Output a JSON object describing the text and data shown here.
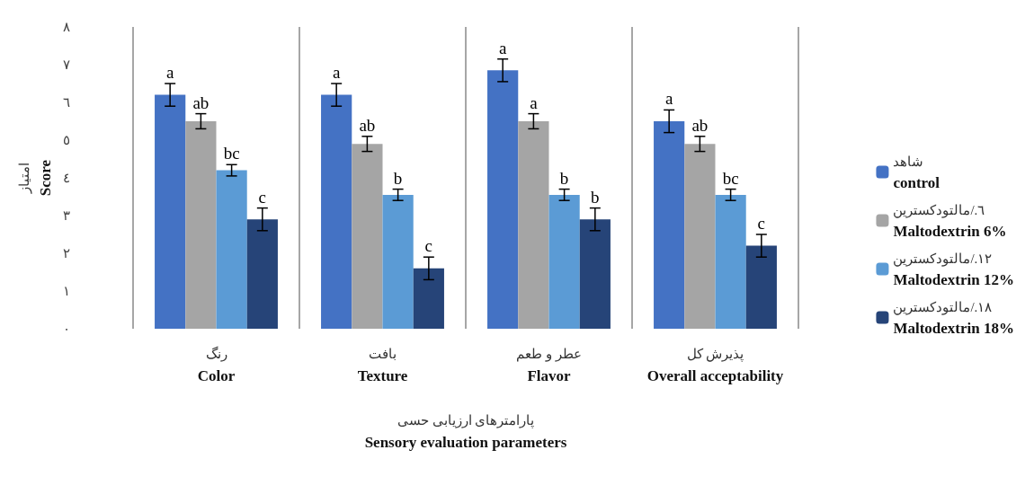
{
  "chart_data": {
    "type": "bar",
    "categories": [
      "رنگ\nColor",
      "بافت\nTexture",
      "عطر و طعم\nFlavor",
      "پذیرش کل\nOverall acceptability"
    ],
    "series": [
      {
        "name": "شاهد\ncontrol",
        "color": "#4472c4",
        "values": [
          6.2,
          6.2,
          6.85,
          5.5
        ],
        "errors": [
          0.3,
          0.3,
          0.3,
          0.3
        ],
        "value_labels": [
          "a",
          "a",
          "a",
          "a"
        ]
      },
      {
        "name": "٦./مالتودکسترین\nMaltodextrin 6%",
        "color": "#a5a5a5",
        "values": [
          5.5,
          4.9,
          5.5,
          4.9
        ],
        "errors": [
          0.2,
          0.2,
          0.2,
          0.2
        ],
        "value_labels": [
          "ab",
          "ab",
          "a",
          "ab"
        ]
      },
      {
        "name": "١٢./مالتودکسترین\nMaltodextrin 12%",
        "color": "#5b9bd5",
        "values": [
          4.2,
          3.55,
          3.55,
          3.55
        ],
        "errors": [
          0.15,
          0.15,
          0.15,
          0.15
        ],
        "value_labels": [
          "bc",
          "b",
          "b",
          "bc"
        ]
      },
      {
        "name": "١٨./مالتودکسترین\nMaltodextrin 18%",
        "color": "#264478",
        "values": [
          2.9,
          1.6,
          2.9,
          2.2
        ],
        "errors": [
          0.3,
          0.3,
          0.3,
          0.3
        ],
        "value_labels": [
          "c",
          "c",
          "b",
          "c"
        ]
      }
    ],
    "ylim": [
      0,
      8
    ],
    "yticks": [
      {
        "value": 0,
        "label": "٠"
      },
      {
        "value": 1,
        "label": "١"
      },
      {
        "value": 2,
        "label": "٢"
      },
      {
        "value": 3,
        "label": "٣"
      },
      {
        "value": 4,
        "label": "٤"
      },
      {
        "value": 5,
        "label": "٥"
      },
      {
        "value": 6,
        "label": "٦"
      },
      {
        "value": 7,
        "label": "٧"
      },
      {
        "value": 8,
        "label": "٨"
      }
    ],
    "ylabel": "امتیاز\nScore",
    "xlabel": "پارامترهای ارزیابی حسی\nSensory evaluation parameters",
    "grid": "x",
    "legend": "right"
  }
}
